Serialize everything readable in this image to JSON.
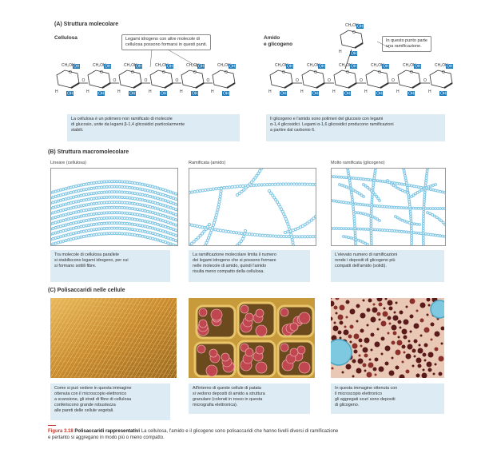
{
  "sectionA": {
    "title": "(A) Struttura molecolare",
    "cellulosa_label": "Cellulosa",
    "cellulosa_callout": [
      "Legami idrogeno con altre molecole di",
      "cellulosa possono formarsi in questi punti."
    ],
    "amido_label": [
      "Amido",
      "e glicogeno"
    ],
    "amido_callout": [
      "In questo punto parte",
      "una ramificazione."
    ],
    "caption_left": [
      "La cellulosa è un polimero non ramificato di molecole",
      "di glucosio, unite da legami β-1,4 glicosidici particolarmente",
      "stabili."
    ],
    "caption_right": [
      "Il glicogeno e l'amido sono polimeri del glucosio con legami",
      "α-1,4 glicosidici. Legami α-1,6 glicosidici producono ramificazioni",
      "a partire dal carbonio 6."
    ],
    "chem": {
      "ch2oh": "CH₂OH",
      "h": "H",
      "oh": "OH",
      "o": "O"
    }
  },
  "sectionB": {
    "title": "(B) Struttura macromolecolare",
    "panels": [
      {
        "label": "Lineare (cellulosa)",
        "caption": [
          "Tra molecole di cellulosa parallele",
          "si stabiliscono legami idrogeno, per cui",
          "si formano sottili fibre."
        ]
      },
      {
        "label": "Ramificata (amido)",
        "caption": [
          "La ramificazione molecolare limita il numero",
          "dei legami idrogeno che si possono formare",
          "nelle molecole di amido, quindi l'amido",
          "risulta meno compatto della cellulosa."
        ]
      },
      {
        "label": "Molto ramificata (glicogeno)",
        "caption": [
          "L'elevato numero di ramificazioni",
          "rende i depositi di glicogeno più",
          "compatti dell'amido (solidi)."
        ]
      }
    ]
  },
  "sectionC": {
    "title": "(C) Polisaccaridi nelle cellule",
    "panels": [
      {
        "caption": [
          "Come si può vedere in questa immagine",
          "ottenuta con il microscopio elettronico",
          "a scansione, gli strati di fibre di cellulosa",
          "conferiscono grande robustezza",
          "alle pareti delle cellule vegetali."
        ]
      },
      {
        "caption": [
          "All'interno di queste cellule di patata",
          "si vedono depositi di amido a struttura",
          "granulare (colorati in rosso in questa",
          "micrografia elettronica)."
        ]
      },
      {
        "caption": [
          "In questa immagine ottenuta con",
          "il microscopio elettronico",
          "gli aggregati scuri sono depositi",
          "di glicogeno."
        ]
      }
    ]
  },
  "figure": {
    "number": "Figura 3.18",
    "title": "Polisaccaridi rappresentativi",
    "text": [
      "La cellulosa, l'amido e il glicogeno sono polisaccaridi che hanno livelli diversi di ramificazione",
      "e pertanto si aggregano in modo più o meno compatto."
    ]
  },
  "colors": {
    "caption_bg": "#dcebf4",
    "accent_blue": "#1f77b4",
    "strand": "#7cc4e4",
    "figure_red": "#c0392b"
  }
}
